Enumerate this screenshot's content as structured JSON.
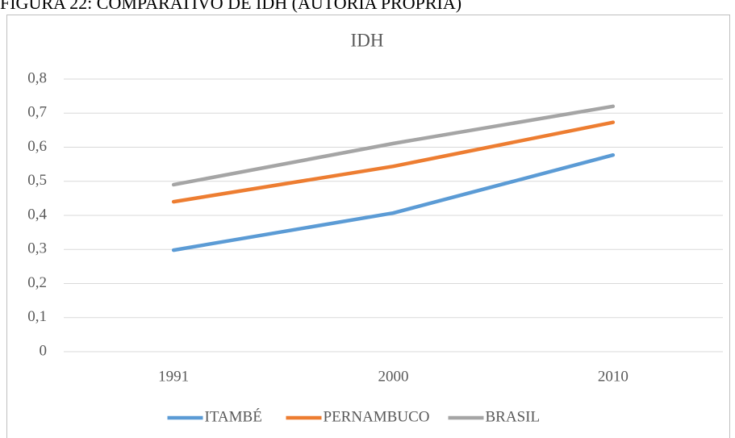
{
  "caption": "FIGURA 22: COMPARATIVO DE IDH (AUTORIA PRÓPRIA)",
  "chart_data": {
    "type": "line",
    "title": "IDH",
    "categories": [
      "1991",
      "2000",
      "2010"
    ],
    "series": [
      {
        "name": "ITAMBÉ",
        "color": "#5b9bd5",
        "values": [
          0.298,
          0.407,
          0.577
        ]
      },
      {
        "name": "PERNAMBUCO",
        "color": "#ed7d31",
        "values": [
          0.44,
          0.544,
          0.673
        ]
      },
      {
        "name": "BRASIL",
        "color": "#a5a5a5",
        "values": [
          0.49,
          0.611,
          0.72
        ]
      }
    ],
    "ylim": [
      0,
      0.8
    ],
    "yticks": [
      0,
      {
        "value": 0.1,
        "label": "0,1"
      },
      {
        "value": 0.2,
        "label": "0,2"
      },
      {
        "value": 0.3,
        "label": "0,3"
      },
      {
        "value": 0.4,
        "label": "0,4"
      },
      {
        "value": 0.5,
        "label": "0,5"
      },
      {
        "value": 0.6,
        "label": "0,6"
      },
      {
        "value": 0.7,
        "label": "0,7"
      },
      {
        "value": 0.8,
        "label": "0,8"
      }
    ],
    "grid": true,
    "legend": "bottom"
  }
}
